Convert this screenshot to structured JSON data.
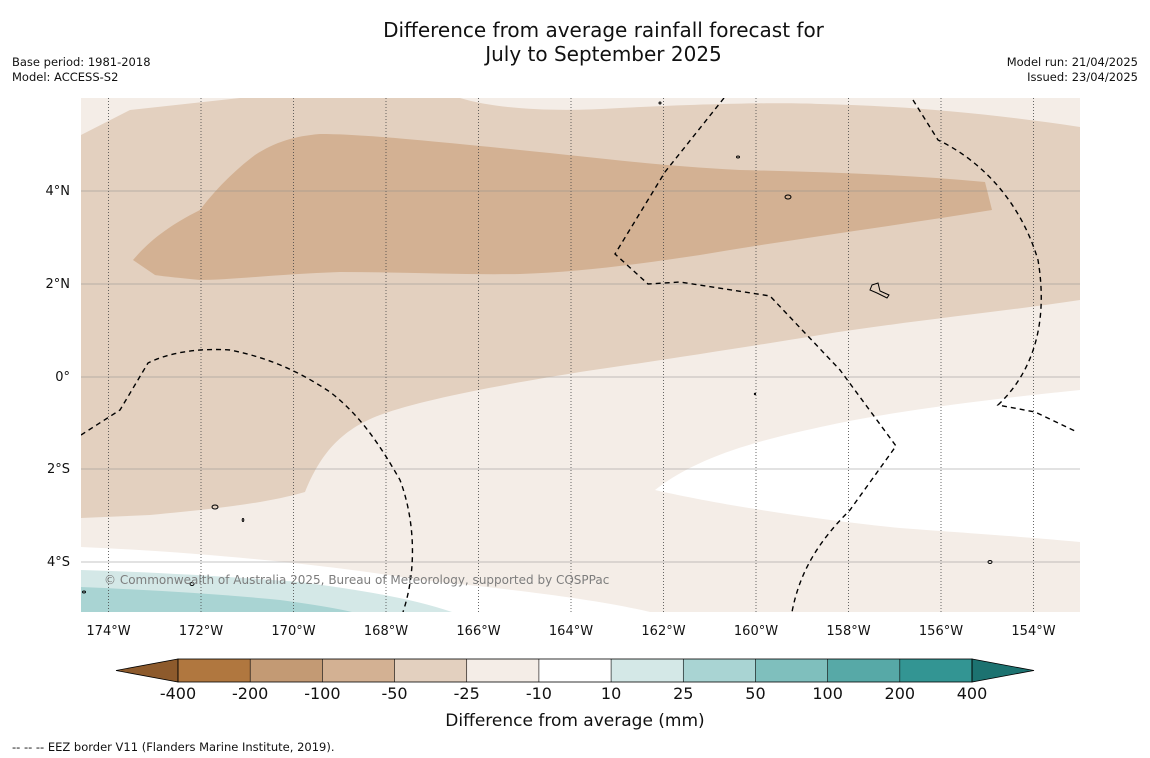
{
  "title": {
    "line1": "Difference from average rainfall forecast for",
    "line2": "July to September 2025"
  },
  "meta_left": {
    "base_period": "Base period: 1981-2018",
    "model": "Model: ACCESS-S2"
  },
  "meta_right": {
    "model_run": "Model run: 21/04/2025",
    "issued": "Issued: 23/04/2025"
  },
  "map": {
    "lon_labels": [
      "174°W",
      "172°W",
      "170°W",
      "168°W",
      "166°W",
      "164°W",
      "162°W",
      "160°W",
      "158°W",
      "156°W",
      "154°W"
    ],
    "lat_labels": [
      "4°N",
      "2°N",
      "0°",
      "2°S",
      "4°S"
    ],
    "copyright": "© Commonwealth of Australia 2025, Bureau of Meteorology, supported by COSPPac",
    "category_colors": {
      "-200 to -100": "#c39a74",
      "-100 to -50": "#d3b193",
      "-50 to -25": "#e3d0bf",
      "-25 to -10": "#f4ede7",
      "-10 to 10": "#ffffff",
      "10 to 25": "#d4e8e7",
      "25 to 50": "#a9d4d3"
    },
    "eez_border_style": "dashed black"
  },
  "colorbar": {
    "ticks": [
      "-400",
      "-200",
      "-100",
      "-50",
      "-25",
      "-10",
      "10",
      "25",
      "50",
      "100",
      "200",
      "400"
    ],
    "colors": [
      "#8d5a2c",
      "#b0773f",
      "#c39a74",
      "#d3b193",
      "#e3d0bf",
      "#f4ede7",
      "#ffffff",
      "#d4e8e7",
      "#a9d4d3",
      "#7fbfbd",
      "#57a9a7",
      "#339593",
      "#1c7270"
    ],
    "title": "Difference from average (mm)"
  },
  "footnote": "--  --  -- EEZ border V11 (Flanders Marine Institute, 2019)."
}
